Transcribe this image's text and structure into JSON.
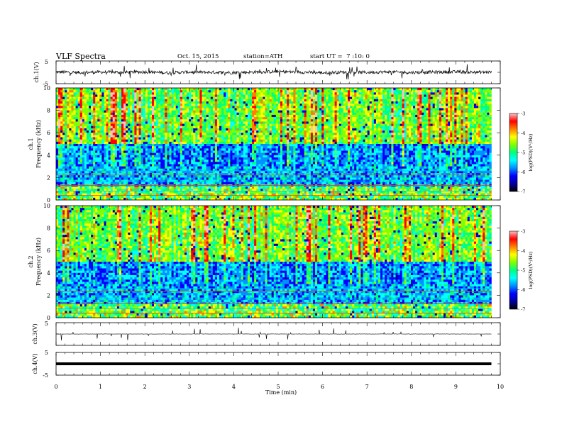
{
  "header": {
    "title": "VLF Spectra",
    "date": "Oct. 15, 2015",
    "station": "station=ATH",
    "start": "start UT =  7 :10: 0"
  },
  "colors": {
    "colormap": [
      "#000000",
      "#0000a0",
      "#0000ff",
      "#0090ff",
      "#00ffff",
      "#00ff80",
      "#80ff00",
      "#ffff00",
      "#ff8000",
      "#ff0000",
      "#ffc0c0"
    ],
    "line": "#000000"
  },
  "chart_data": [
    {
      "id": "ch1_waveform",
      "type": "line",
      "ylabel": "ch.1(V)",
      "ylim": [
        -5,
        5
      ],
      "yticks": [
        "5",
        "-5"
      ],
      "series": [
        {
          "x": [
            0,
            0.5,
            1,
            1.5,
            2,
            2.5,
            3,
            3.5,
            4,
            4.5,
            5,
            5.5,
            6,
            6.5,
            7,
            7.5,
            8,
            8.5,
            9,
            9.5,
            9.8
          ],
          "y": [
            0.2,
            -0.1,
            0.1,
            0,
            0.2,
            -0.2,
            0.1,
            0,
            -0.1,
            0.1,
            0.3,
            0.1,
            -0.2,
            0.1,
            0,
            0.2,
            -0.1,
            0.1,
            0.2,
            0,
            0.1
          ]
        }
      ]
    },
    {
      "id": "ch1_spectrogram",
      "type": "heatmap",
      "ylabel": "ch.1\nFrequency (kHz)",
      "ylim": [
        0,
        10
      ],
      "yticks": [
        "0",
        "2",
        "4",
        "6",
        "8",
        "10"
      ],
      "colorbar": {
        "label": "log(PSD)(V²/Hz)",
        "range": [
          -7,
          -3
        ],
        "ticks": [
          "-3",
          "-4",
          "-5",
          "-6",
          "-7"
        ]
      }
    },
    {
      "id": "ch2_spectrogram",
      "type": "heatmap",
      "ylabel": "ch.2\nFrequency (kHz)",
      "ylim": [
        0,
        10
      ],
      "yticks": [
        "0",
        "2",
        "4",
        "6",
        "8",
        "10"
      ],
      "colorbar": {
        "label": "log(PSD)(V²/Hz)",
        "range": [
          -7,
          -3
        ],
        "ticks": [
          "-3",
          "-4",
          "-5",
          "-6",
          "-7"
        ]
      }
    },
    {
      "id": "ch3_waveform",
      "type": "line",
      "ylabel": "ch.3(V)",
      "ylim": [
        -5,
        5
      ],
      "yticks": [
        "5",
        "-5"
      ],
      "series": [
        {
          "x": [
            0,
            1,
            2,
            3,
            4,
            5,
            6,
            7,
            8,
            9,
            9.8
          ],
          "y": [
            0,
            0,
            0,
            0,
            0,
            0,
            0,
            0,
            0,
            0,
            0
          ]
        }
      ]
    },
    {
      "id": "ch4_waveform",
      "type": "line",
      "ylabel": "ch.4(V)",
      "ylim": [
        -5,
        5
      ],
      "yticks": [
        "5",
        "-5"
      ],
      "series": [
        {
          "x": [
            0,
            1,
            2,
            3,
            4,
            5,
            6,
            7,
            8,
            9,
            9.8
          ],
          "y": [
            0,
            0,
            0,
            0,
            0,
            0,
            0,
            0,
            0,
            0,
            0
          ]
        }
      ]
    }
  ],
  "xaxis": {
    "label": "Time (min)",
    "xlim": [
      0,
      10
    ],
    "ticks": [
      "0",
      "1",
      "2",
      "3",
      "4",
      "5",
      "6",
      "7",
      "8",
      "9",
      "10"
    ]
  }
}
